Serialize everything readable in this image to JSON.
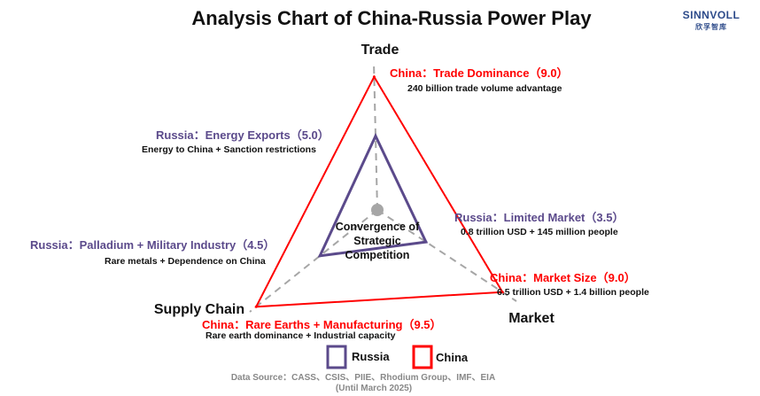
{
  "title": "Analysis Chart of China-Russia Power Play",
  "logo": {
    "name": "SINNVOLL",
    "subtitle": "欣孚智库"
  },
  "center_label": [
    "Convergence of",
    "Strategic",
    "Competition"
  ],
  "source": {
    "line1": "Data Source：CASS、CSIS、PIIE、Rhodium Group、IMF、EIA",
    "line2": "(Until March 2025)"
  },
  "colors": {
    "china": "#ff0000",
    "russia": "#5b4a8b",
    "axis": "#a6a6a6",
    "center_dot": "#a6a6a6"
  },
  "chart_data": {
    "type": "radar",
    "title": "Analysis Chart of China-Russia Power Play",
    "axes": [
      "Trade",
      "Market",
      "Supply Chain"
    ],
    "scale": [
      0,
      10
    ],
    "series": [
      {
        "name": "China",
        "values": [
          9.0,
          9.0,
          9.5
        ]
      },
      {
        "name": "Russia",
        "values": [
          5.0,
          3.5,
          4.5
        ]
      }
    ],
    "annotations": [
      {
        "series": "China",
        "axis": "Trade",
        "label": "China：Trade Dominance（9.0）",
        "detail": "240 billion trade volume advantage"
      },
      {
        "series": "Russia",
        "axis": "Trade",
        "label": "Russia：Energy Exports（5.0）",
        "detail": "Energy to China + Sanction restrictions"
      },
      {
        "series": "Russia",
        "axis": "Market",
        "label": "Russia：Limited Market（3.5）",
        "detail": "0.8 trillion USD + 145 million people"
      },
      {
        "series": "China",
        "axis": "Market",
        "label": "China：Market Size（9.0）",
        "detail": "6.5 trillion USD + 1.4 billion people"
      },
      {
        "series": "Russia",
        "axis": "Supply Chain",
        "label": "Russia：Palladium + Military Industry（4.5）",
        "detail": "Rare metals + Dependence on China"
      },
      {
        "series": "China",
        "axis": "Supply Chain",
        "label": "China：Rare Earths + Manufacturing（9.5）",
        "detail": "Rare earth dominance + Industrial capacity"
      }
    ],
    "legend": {
      "position": "bottom",
      "entries": [
        "Russia",
        "China"
      ]
    }
  }
}
